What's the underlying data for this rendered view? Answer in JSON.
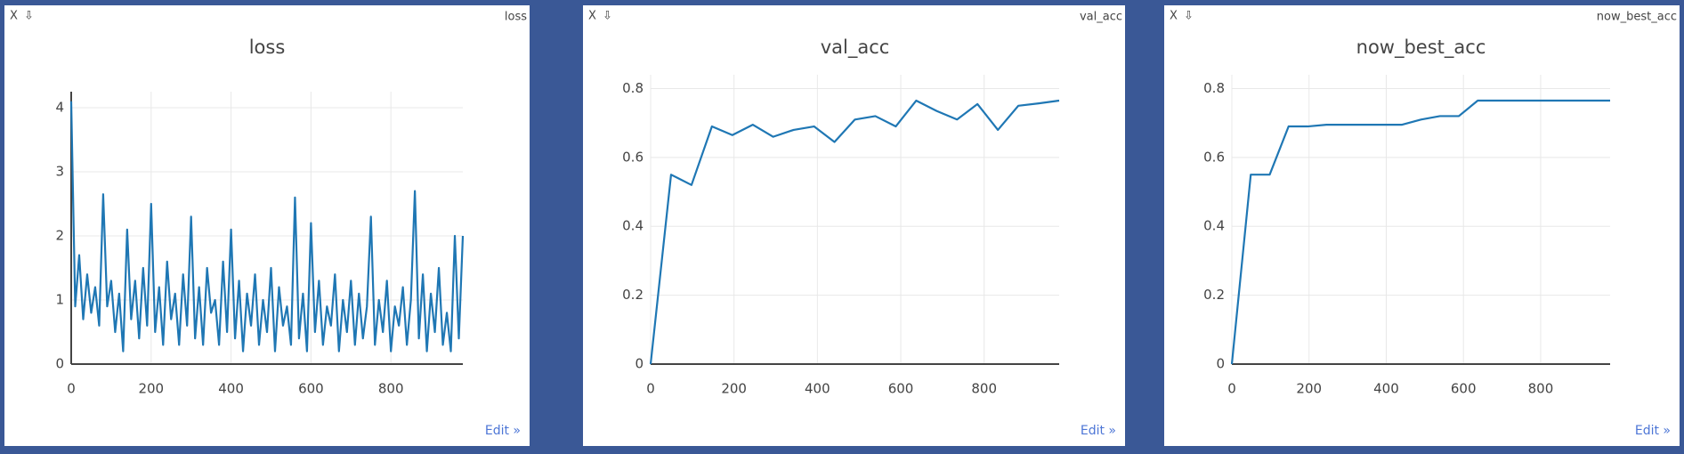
{
  "windows": [
    {
      "close": "X",
      "download": "⇩",
      "label": "loss",
      "edit": "Edit »"
    },
    {
      "close": "X",
      "download": "⇩",
      "label": "val_acc",
      "edit": "Edit »"
    },
    {
      "close": "X",
      "download": "⇩",
      "label": "now_best_acc",
      "edit": "Edit »"
    }
  ],
  "chart_data": [
    {
      "type": "line",
      "title": "loss",
      "x": [
        0,
        10,
        20,
        30,
        40,
        50,
        60,
        70,
        80,
        90,
        100,
        110,
        120,
        130,
        140,
        150,
        160,
        170,
        180,
        190,
        200,
        210,
        220,
        230,
        240,
        250,
        260,
        270,
        280,
        290,
        300,
        310,
        320,
        330,
        340,
        350,
        360,
        370,
        380,
        390,
        400,
        410,
        420,
        430,
        440,
        450,
        460,
        470,
        480,
        490,
        500,
        510,
        520,
        530,
        540,
        550,
        560,
        570,
        580,
        590,
        600,
        610,
        620,
        630,
        640,
        650,
        660,
        670,
        680,
        690,
        700,
        710,
        720,
        730,
        740,
        750,
        760,
        770,
        780,
        790,
        800,
        810,
        820,
        830,
        840,
        850,
        860,
        870,
        880,
        890,
        900,
        910,
        920,
        930,
        940,
        950,
        960,
        970,
        980
      ],
      "series": [
        {
          "color": "#1f77b4",
          "values": [
            4.1,
            0.9,
            1.7,
            0.7,
            1.4,
            0.8,
            1.2,
            0.6,
            2.65,
            0.9,
            1.3,
            0.5,
            1.1,
            0.2,
            2.1,
            0.7,
            1.3,
            0.4,
            1.5,
            0.6,
            2.5,
            0.5,
            1.2,
            0.3,
            1.6,
            0.7,
            1.1,
            0.3,
            1.4,
            0.6,
            2.3,
            0.4,
            1.2,
            0.3,
            1.5,
            0.8,
            1.0,
            0.3,
            1.6,
            0.5,
            2.1,
            0.4,
            1.3,
            0.2,
            1.1,
            0.6,
            1.4,
            0.3,
            1.0,
            0.5,
            1.5,
            0.2,
            1.2,
            0.6,
            0.9,
            0.3,
            2.6,
            0.4,
            1.1,
            0.2,
            2.2,
            0.5,
            1.3,
            0.3,
            0.9,
            0.6,
            1.4,
            0.2,
            1.0,
            0.5,
            1.3,
            0.3,
            1.1,
            0.4,
            0.9,
            2.3,
            0.3,
            1.0,
            0.5,
            1.3,
            0.2,
            0.9,
            0.6,
            1.2,
            0.3,
            1.0,
            2.7,
            0.4,
            1.4,
            0.2,
            1.1,
            0.5,
            1.5,
            0.3,
            0.8,
            0.2,
            2.0,
            0.4,
            2.0
          ]
        }
      ],
      "xlim": [
        0,
        980
      ],
      "ylim": [
        0,
        4.25
      ],
      "xticks": [
        0,
        200,
        400,
        600,
        800
      ],
      "yticks": [
        0,
        1,
        2,
        3,
        4
      ],
      "grid": true
    },
    {
      "type": "line",
      "title": "val_acc",
      "x": [
        0,
        49,
        98,
        147,
        196,
        245,
        294,
        343,
        392,
        441,
        490,
        539,
        588,
        637,
        686,
        735,
        784,
        833,
        882,
        931,
        980
      ],
      "series": [
        {
          "color": "#1f77b4",
          "values": [
            0,
            0.55,
            0.52,
            0.69,
            0.665,
            0.695,
            0.66,
            0.68,
            0.69,
            0.645,
            0.71,
            0.72,
            0.69,
            0.765,
            0.735,
            0.71,
            0.755,
            0.68,
            0.75,
            0.757,
            0.765
          ]
        }
      ],
      "xlim": [
        0,
        980
      ],
      "ylim": [
        0,
        0.84
      ],
      "xticks": [
        0,
        200,
        400,
        600,
        800
      ],
      "yticks": [
        0,
        0.2,
        0.4,
        0.6,
        0.8
      ],
      "grid": true
    },
    {
      "type": "line",
      "title": "now_best_acc",
      "x": [
        0,
        49,
        98,
        147,
        196,
        245,
        294,
        343,
        392,
        441,
        490,
        539,
        588,
        637,
        686,
        735,
        784,
        833,
        882,
        931,
        980
      ],
      "series": [
        {
          "color": "#1f77b4",
          "values": [
            0,
            0.55,
            0.55,
            0.69,
            0.69,
            0.695,
            0.695,
            0.695,
            0.695,
            0.695,
            0.71,
            0.72,
            0.72,
            0.765,
            0.765,
            0.765,
            0.765,
            0.765,
            0.765,
            0.765,
            0.765
          ]
        }
      ],
      "xlim": [
        0,
        980
      ],
      "ylim": [
        0,
        0.84
      ],
      "xticks": [
        0,
        200,
        400,
        600,
        800
      ],
      "yticks": [
        0,
        0.2,
        0.4,
        0.6,
        0.8
      ],
      "grid": true
    }
  ]
}
